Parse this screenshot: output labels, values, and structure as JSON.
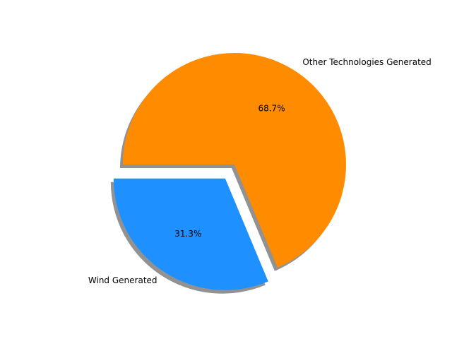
{
  "chart_data": {
    "type": "pie",
    "start_angle_deg": 180,
    "direction": "counterclockwise",
    "shadow": true,
    "slices": [
      {
        "label": "Wind Generated",
        "value": 31.3,
        "pct_label": "31.3%",
        "color": "#1e90ff",
        "explode": 0.15
      },
      {
        "label": "Other Technologies Generated",
        "value": 68.7,
        "pct_label": "68.7%",
        "color": "#ff8c00",
        "explode": 0
      }
    ]
  }
}
